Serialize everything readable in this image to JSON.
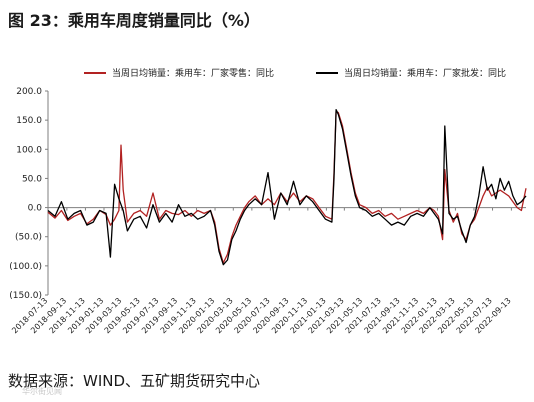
{
  "title": "图 23：乘用车周度销量同比（%）",
  "source": "数据来源：WIND、五矿期货研究中心",
  "chart_data": {
    "type": "line",
    "title": "",
    "xlabel": "",
    "ylabel": "",
    "ylim": [
      -150,
      200
    ],
    "yticks": [
      200,
      150,
      100,
      50,
      0,
      -50,
      -100,
      -150
    ],
    "ytick_labels": [
      "200.0",
      "150.0",
      "100.0",
      "50.0",
      "0.0",
      "(50.0)",
      "(100.0)",
      "(150.0)"
    ],
    "ytick_colors": [
      "#000000",
      "#000000",
      "#000000",
      "#000000",
      "#000000",
      "#c00000",
      "#c00000",
      "#c00000"
    ],
    "x_ticks": [
      "2018-07-13",
      "2018-09-13",
      "2018-11-13",
      "2019-01-13",
      "2019-03-13",
      "2019-05-13",
      "2019-07-13",
      "2019-09-13",
      "2019-11-13",
      "2020-01-13",
      "2020-03-13",
      "2020-05-13",
      "2020-07-13",
      "2020-09-13",
      "2020-11-13",
      "2021-01-13",
      "2021-03-13",
      "2021-05-13",
      "2021-07-13",
      "2021-09-13",
      "2021-11-13",
      "2022-01-13",
      "2022-03-13",
      "2022-05-13",
      "2022-07-13",
      "2022-09-13"
    ],
    "x_start": "2018-07-13",
    "x_end": "2022-10-31",
    "legend_position": "top",
    "grid": false,
    "series": [
      {
        "name": "当周日均销量：乘用车：厂家零售：同比",
        "color": "#b22222",
        "width": 1.3,
        "points": [
          [
            "2018-07-13",
            -8
          ],
          [
            "2018-08-05",
            -18
          ],
          [
            "2018-08-26",
            -5
          ],
          [
            "2018-09-16",
            -22
          ],
          [
            "2018-10-07",
            -15
          ],
          [
            "2018-10-28",
            -10
          ],
          [
            "2018-11-18",
            -28
          ],
          [
            "2018-12-09",
            -20
          ],
          [
            "2018-12-30",
            -5
          ],
          [
            "2019-01-20",
            -12
          ],
          [
            "2019-02-03",
            -30
          ],
          [
            "2019-02-17",
            -20
          ],
          [
            "2019-03-03",
            -5
          ],
          [
            "2019-03-10",
            107
          ],
          [
            "2019-03-17",
            30
          ],
          [
            "2019-03-31",
            -25
          ],
          [
            "2019-04-21",
            -10
          ],
          [
            "2019-05-12",
            -5
          ],
          [
            "2019-06-02",
            -15
          ],
          [
            "2019-06-23",
            25
          ],
          [
            "2019-07-14",
            -20
          ],
          [
            "2019-08-04",
            -5
          ],
          [
            "2019-08-25",
            -10
          ],
          [
            "2019-09-15",
            -12
          ],
          [
            "2019-10-06",
            -5
          ],
          [
            "2019-10-27",
            -15
          ],
          [
            "2019-11-17",
            -5
          ],
          [
            "2019-12-08",
            -10
          ],
          [
            "2019-12-29",
            -5
          ],
          [
            "2020-01-12",
            -25
          ],
          [
            "2020-01-26",
            -70
          ],
          [
            "2020-02-09",
            -95
          ],
          [
            "2020-02-23",
            -80
          ],
          [
            "2020-03-08",
            -50
          ],
          [
            "2020-03-22",
            -30
          ],
          [
            "2020-04-05",
            -15
          ],
          [
            "2020-04-19",
            0
          ],
          [
            "2020-05-03",
            10
          ],
          [
            "2020-05-24",
            20
          ],
          [
            "2020-06-14",
            5
          ],
          [
            "2020-07-05",
            15
          ],
          [
            "2020-07-26",
            5
          ],
          [
            "2020-08-16",
            25
          ],
          [
            "2020-09-06",
            10
          ],
          [
            "2020-09-27",
            25
          ],
          [
            "2020-10-18",
            10
          ],
          [
            "2020-11-08",
            20
          ],
          [
            "2020-11-29",
            15
          ],
          [
            "2020-12-20",
            0
          ],
          [
            "2021-01-10",
            -15
          ],
          [
            "2021-01-31",
            -20
          ],
          [
            "2021-02-07",
            60
          ],
          [
            "2021-02-14",
            165
          ],
          [
            "2021-02-21",
            163
          ],
          [
            "2021-03-07",
            140
          ],
          [
            "2021-03-21",
            100
          ],
          [
            "2021-04-04",
            60
          ],
          [
            "2021-04-18",
            25
          ],
          [
            "2021-05-02",
            5
          ],
          [
            "2021-05-23",
            0
          ],
          [
            "2021-06-13",
            -10
          ],
          [
            "2021-07-04",
            -5
          ],
          [
            "2021-07-25",
            -15
          ],
          [
            "2021-08-15",
            -10
          ],
          [
            "2021-09-05",
            -20
          ],
          [
            "2021-09-26",
            -15
          ],
          [
            "2021-10-17",
            -10
          ],
          [
            "2021-11-07",
            -5
          ],
          [
            "2021-11-28",
            -10
          ],
          [
            "2021-12-19",
            0
          ],
          [
            "2022-01-02",
            -5
          ],
          [
            "2022-01-16",
            -15
          ],
          [
            "2022-01-30",
            -55
          ],
          [
            "2022-02-06",
            65
          ],
          [
            "2022-02-20",
            -5
          ],
          [
            "2022-03-06",
            -25
          ],
          [
            "2022-03-20",
            -10
          ],
          [
            "2022-04-03",
            -45
          ],
          [
            "2022-04-17",
            -55
          ],
          [
            "2022-05-01",
            -30
          ],
          [
            "2022-05-15",
            -20
          ],
          [
            "2022-05-29",
            0
          ],
          [
            "2022-06-12",
            20
          ],
          [
            "2022-06-26",
            35
          ],
          [
            "2022-07-10",
            20
          ],
          [
            "2022-07-24",
            25
          ],
          [
            "2022-08-07",
            30
          ],
          [
            "2022-08-21",
            25
          ],
          [
            "2022-09-04",
            20
          ],
          [
            "2022-09-18",
            10
          ],
          [
            "2022-10-02",
            0
          ],
          [
            "2022-10-16",
            -5
          ],
          [
            "2022-10-31",
            33
          ]
        ]
      },
      {
        "name": "当周日均销量：乘用车：厂家批发：同比",
        "color": "#000000",
        "width": 1.3,
        "points": [
          [
            "2018-07-13",
            -5
          ],
          [
            "2018-08-05",
            -15
          ],
          [
            "2018-08-26",
            10
          ],
          [
            "2018-09-16",
            -20
          ],
          [
            "2018-10-07",
            -10
          ],
          [
            "2018-10-28",
            -5
          ],
          [
            "2018-11-18",
            -30
          ],
          [
            "2018-12-09",
            -25
          ],
          [
            "2018-12-30",
            -5
          ],
          [
            "2019-01-20",
            -10
          ],
          [
            "2019-02-03",
            -85
          ],
          [
            "2019-02-17",
            40
          ],
          [
            "2019-03-03",
            15
          ],
          [
            "2019-03-17",
            -5
          ],
          [
            "2019-03-31",
            -40
          ],
          [
            "2019-04-21",
            -20
          ],
          [
            "2019-05-12",
            -15
          ],
          [
            "2019-06-02",
            -35
          ],
          [
            "2019-06-23",
            5
          ],
          [
            "2019-07-14",
            -25
          ],
          [
            "2019-08-04",
            -10
          ],
          [
            "2019-08-25",
            -25
          ],
          [
            "2019-09-15",
            5
          ],
          [
            "2019-10-06",
            -15
          ],
          [
            "2019-10-27",
            -10
          ],
          [
            "2019-11-17",
            -20
          ],
          [
            "2019-12-08",
            -15
          ],
          [
            "2019-12-29",
            -5
          ],
          [
            "2020-01-12",
            -30
          ],
          [
            "2020-01-26",
            -75
          ],
          [
            "2020-02-09",
            -98
          ],
          [
            "2020-02-23",
            -90
          ],
          [
            "2020-03-08",
            -55
          ],
          [
            "2020-03-22",
            -40
          ],
          [
            "2020-04-05",
            -20
          ],
          [
            "2020-04-19",
            -5
          ],
          [
            "2020-05-03",
            5
          ],
          [
            "2020-05-24",
            15
          ],
          [
            "2020-06-14",
            5
          ],
          [
            "2020-07-05",
            60
          ],
          [
            "2020-07-26",
            -20
          ],
          [
            "2020-08-16",
            25
          ],
          [
            "2020-09-06",
            5
          ],
          [
            "2020-09-27",
            45
          ],
          [
            "2020-10-18",
            5
          ],
          [
            "2020-11-08",
            20
          ],
          [
            "2020-11-29",
            10
          ],
          [
            "2020-12-20",
            -5
          ],
          [
            "2021-01-10",
            -20
          ],
          [
            "2021-01-31",
            -25
          ],
          [
            "2021-02-07",
            50
          ],
          [
            "2021-02-14",
            168
          ],
          [
            "2021-02-21",
            160
          ],
          [
            "2021-03-07",
            135
          ],
          [
            "2021-03-21",
            95
          ],
          [
            "2021-04-04",
            55
          ],
          [
            "2021-04-18",
            20
          ],
          [
            "2021-05-02",
            0
          ],
          [
            "2021-05-23",
            -5
          ],
          [
            "2021-06-13",
            -15
          ],
          [
            "2021-07-04",
            -10
          ],
          [
            "2021-07-25",
            -20
          ],
          [
            "2021-08-15",
            -30
          ],
          [
            "2021-09-05",
            -25
          ],
          [
            "2021-09-26",
            -30
          ],
          [
            "2021-10-17",
            -15
          ],
          [
            "2021-11-07",
            -10
          ],
          [
            "2021-11-28",
            -15
          ],
          [
            "2021-12-19",
            0
          ],
          [
            "2022-01-02",
            -10
          ],
          [
            "2022-01-16",
            -20
          ],
          [
            "2022-01-30",
            -45
          ],
          [
            "2022-02-06",
            140
          ],
          [
            "2022-02-20",
            -10
          ],
          [
            "2022-03-06",
            -20
          ],
          [
            "2022-03-20",
            -15
          ],
          [
            "2022-04-03",
            -40
          ],
          [
            "2022-04-17",
            -60
          ],
          [
            "2022-05-01",
            -30
          ],
          [
            "2022-05-15",
            -15
          ],
          [
            "2022-05-29",
            20
          ],
          [
            "2022-06-12",
            70
          ],
          [
            "2022-06-26",
            30
          ],
          [
            "2022-07-10",
            40
          ],
          [
            "2022-07-24",
            15
          ],
          [
            "2022-08-07",
            50
          ],
          [
            "2022-08-21",
            30
          ],
          [
            "2022-09-04",
            45
          ],
          [
            "2022-09-18",
            20
          ],
          [
            "2022-10-02",
            5
          ],
          [
            "2022-10-16",
            10
          ],
          [
            "2022-10-31",
            20
          ]
        ]
      }
    ]
  },
  "watermark": "华尔街见闻"
}
